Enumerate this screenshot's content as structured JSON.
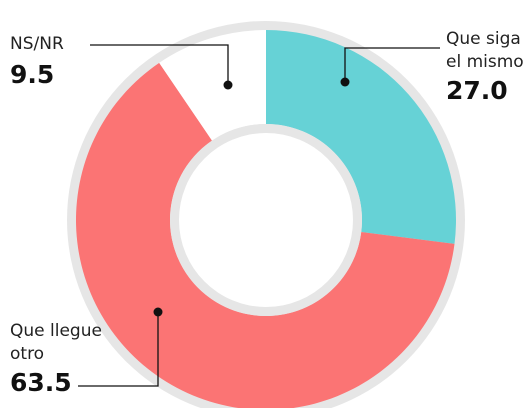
{
  "chart_data": {
    "type": "donut",
    "categories": [
      "Que siga el mismo",
      "Que llegue otro",
      "NS/NR"
    ],
    "values": [
      27.0,
      63.5,
      9.5
    ],
    "value_labels": [
      "27.0",
      "63.5",
      "9.5"
    ],
    "colors": [
      "#66d2d6",
      "#fb7474",
      "#ffffff"
    ]
  }
}
